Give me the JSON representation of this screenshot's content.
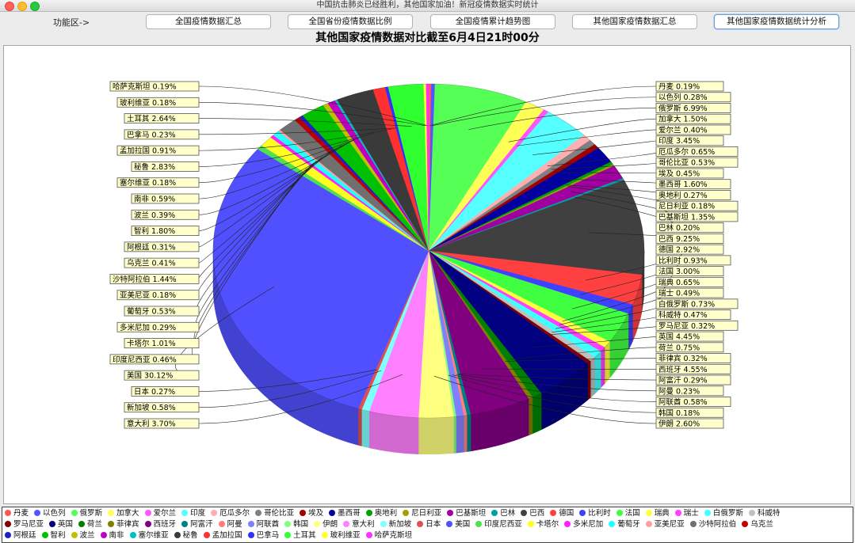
{
  "window": {
    "title": "中国抗击肺炎已经胜利，其他国家加油！新冠疫情数据实时统计"
  },
  "toolbar": {
    "label": "功能区->",
    "buttons": [
      "全国疫情数据汇总",
      "全国省份疫情数据比例",
      "全国疫情累计趋势图",
      "其他国家疫情数据汇总",
      "其他国家疫情数据统计分析"
    ],
    "active_index": 4
  },
  "chart_data": {
    "type": "pie",
    "style": "3d",
    "title": "其他国家疫情数据对比截至6月4日21时00分",
    "legend_position": "bottom",
    "slices": [
      {
        "name": "丹麦",
        "percent": 0.19,
        "color": "#ff5555"
      },
      {
        "name": "以色列",
        "percent": 0.28,
        "color": "#5555ff"
      },
      {
        "name": "俄罗斯",
        "percent": 6.99,
        "color": "#55ff55"
      },
      {
        "name": "加拿大",
        "percent": 1.5,
        "color": "#ffff55"
      },
      {
        "name": "爱尔兰",
        "percent": 0.4,
        "color": "#ff55ff"
      },
      {
        "name": "印度",
        "percent": 3.45,
        "color": "#55ffff"
      },
      {
        "name": "厄瓜多尔",
        "percent": 0.65,
        "color": "#ffafaf"
      },
      {
        "name": "哥伦比亚",
        "percent": 0.53,
        "color": "#808080"
      },
      {
        "name": "埃及",
        "percent": 0.45,
        "color": "#a00000"
      },
      {
        "name": "墨西哥",
        "percent": 1.6,
        "color": "#0000a0"
      },
      {
        "name": "奥地利",
        "percent": 0.27,
        "color": "#00a000"
      },
      {
        "name": "尼日利亚",
        "percent": 0.18,
        "color": "#a0a000"
      },
      {
        "name": "巴基斯坦",
        "percent": 1.35,
        "color": "#a000a0"
      },
      {
        "name": "巴林",
        "percent": 0.2,
        "color": "#00a0a0"
      },
      {
        "name": "巴西",
        "percent": 9.25,
        "color": "#404040"
      },
      {
        "name": "德国",
        "percent": 2.92,
        "color": "#ff4040"
      },
      {
        "name": "比利时",
        "percent": 0.93,
        "color": "#4040ff"
      },
      {
        "name": "法国",
        "percent": 3.0,
        "color": "#40ff40"
      },
      {
        "name": "瑞典",
        "percent": 0.65,
        "color": "#ffff40"
      },
      {
        "name": "瑞士",
        "percent": 0.49,
        "color": "#ff40ff"
      },
      {
        "name": "白俄罗斯",
        "percent": 0.73,
        "color": "#40ffff"
      },
      {
        "name": "科威特",
        "percent": 0.47,
        "color": "#c0c0c0"
      },
      {
        "name": "罗马尼亚",
        "percent": 0.32,
        "color": "#800000"
      },
      {
        "name": "英国",
        "percent": 4.45,
        "color": "#000080"
      },
      {
        "name": "荷兰",
        "percent": 0.75,
        "color": "#008000"
      },
      {
        "name": "菲律宾",
        "percent": 0.32,
        "color": "#808000"
      },
      {
        "name": "西班牙",
        "percent": 4.55,
        "color": "#800080"
      },
      {
        "name": "阿富汗",
        "percent": 0.29,
        "color": "#008080"
      },
      {
        "name": "阿曼",
        "percent": 0.23,
        "color": "#ff8080"
      },
      {
        "name": "阿联酋",
        "percent": 0.58,
        "color": "#8080ff"
      },
      {
        "name": "韩国",
        "percent": 0.18,
        "color": "#80ff80"
      },
      {
        "name": "伊朗",
        "percent": 2.6,
        "color": "#ffff80"
      },
      {
        "name": "意大利",
        "percent": 3.7,
        "color": "#ff80ff"
      },
      {
        "name": "新加坡",
        "percent": 0.58,
        "color": "#80ffff"
      },
      {
        "name": "日本",
        "percent": 0.27,
        "color": "#e05050"
      },
      {
        "name": "美国",
        "percent": 30.12,
        "color": "#5050ff"
      },
      {
        "name": "印度尼西亚",
        "percent": 0.46,
        "color": "#50e050"
      },
      {
        "name": "卡塔尔",
        "percent": 1.01,
        "color": "#ffff20"
      },
      {
        "name": "多米尼加",
        "percent": 0.29,
        "color": "#ff20ff"
      },
      {
        "name": "葡萄牙",
        "percent": 0.53,
        "color": "#20ffff"
      },
      {
        "name": "亚美尼亚",
        "percent": 0.18,
        "color": "#ffa0a0"
      },
      {
        "name": "沙特阿拉伯",
        "percent": 1.44,
        "color": "#707070"
      },
      {
        "name": "乌克兰",
        "percent": 0.41,
        "color": "#c00000"
      },
      {
        "name": "阿根廷",
        "percent": 0.31,
        "color": "#2020c0"
      },
      {
        "name": "智利",
        "percent": 1.8,
        "color": "#00c000"
      },
      {
        "name": "波兰",
        "percent": 0.39,
        "color": "#c0c000"
      },
      {
        "name": "南非",
        "percent": 0.59,
        "color": "#c000c0"
      },
      {
        "name": "塞尔维亚",
        "percent": 0.18,
        "color": "#00c0c0"
      },
      {
        "name": "秘鲁",
        "percent": 2.83,
        "color": "#3a3a3a"
      },
      {
        "name": "孟加拉国",
        "percent": 0.91,
        "color": "#ff3030"
      },
      {
        "name": "巴拿马",
        "percent": 0.23,
        "color": "#3030ff"
      },
      {
        "name": "土耳其",
        "percent": 2.64,
        "color": "#30ff30"
      },
      {
        "name": "玻利维亚",
        "percent": 0.18,
        "color": "#ffff30"
      },
      {
        "name": "哈萨克斯坦",
        "percent": 0.19,
        "color": "#ff30ff"
      }
    ]
  },
  "legend_rows": [
    [
      "丹麦",
      "以色列",
      "俄罗斯",
      "加拿大",
      "爱尔兰",
      "印度",
      "厄瓜多尔",
      "哥伦比亚",
      "埃及",
      "墨西哥",
      "奥地利",
      "尼日利亚",
      "巴基斯坦",
      "巴林",
      "巴西",
      "德国",
      "比利时",
      "法国",
      "瑞典",
      "瑞士",
      "白俄罗斯",
      "科威特"
    ],
    [
      "罗马尼亚",
      "英国",
      "荷兰",
      "菲律宾",
      "西班牙",
      "阿富汗",
      "阿曼",
      "阿联酋",
      "韩国",
      "伊朗",
      "意大利",
      "新加坡",
      "日本",
      "美国",
      "印度尼西亚",
      "卡塔尔",
      "多米尼加",
      "葡萄牙",
      "亚美尼亚",
      "沙特阿拉伯",
      "乌克兰"
    ],
    [
      "阿根廷",
      "智利",
      "波兰",
      "南非",
      "塞尔维亚",
      "秘鲁",
      "孟加拉国",
      "巴拿马",
      "土耳其",
      "玻利维亚",
      "哈萨克斯坦"
    ]
  ]
}
